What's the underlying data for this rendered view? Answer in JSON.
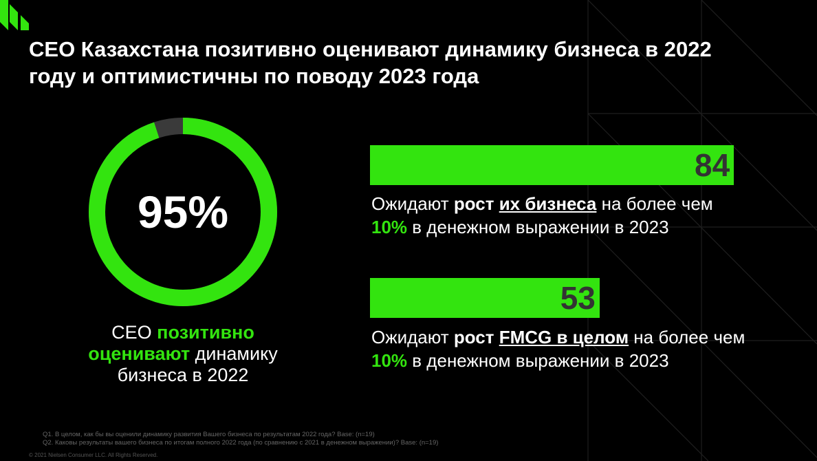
{
  "title": "CEO Казахстана позитивно оценивают динамику бизнеса в 2022 году и оптимистичны по поводу 2023 года",
  "colors": {
    "accent": "#33e40f",
    "background": "#000000",
    "donut_rest": "#3a3a3a",
    "bar_value": "#333333"
  },
  "donut": {
    "value_label": "95%",
    "caption": {
      "part1": "CEO ",
      "highlight1": "позитивно",
      "highlight2": "оценивают",
      "part2": " динамику",
      "part3": "бизнеса в 2022"
    }
  },
  "bars": [
    {
      "value_label": "84",
      "line1_prefix": "Ожидают ",
      "line1_bold": "рост",
      "line1_space": " ",
      "line1_underlined": "их бизнеса",
      "line1_suffix": " на более чем",
      "line2_pct": "10%",
      "line2_text": " в денежном выражении в 2023"
    },
    {
      "value_label": "53",
      "line1_prefix": "Ожидают ",
      "line1_bold": "рост",
      "line1_space": " ",
      "line1_underlined": "FMCG в целом",
      "line1_suffix": " на более чем",
      "line2_pct": "10%",
      "line2_text": " в денежном выражении в 2023"
    }
  ],
  "footnotes": {
    "q1": "Q1. В целом, как бы вы оценили динамику развития Вашего бизнеса по результатам 2022 года? Base: (n=19)",
    "q2": "Q2. Каковы результаты вашего бизнеса по итогам полного 2022 года (по сравнению с 2021 в денежном выражении)? Base: (n=19)"
  },
  "copyright": "© 2021 Nielsen Consumer LLC. All Rights Reserved.",
  "chart_data": [
    {
      "type": "pie",
      "values": [
        95,
        5
      ],
      "value_labels": [
        "95%"
      ],
      "units": "percent"
    },
    {
      "type": "bar",
      "orientation": "horizontal",
      "values": [
        84,
        53
      ],
      "units": "percent",
      "xlim": [
        0,
        100
      ],
      "categories": [
        "их бизнеса",
        "FMCG в целом"
      ]
    }
  ]
}
